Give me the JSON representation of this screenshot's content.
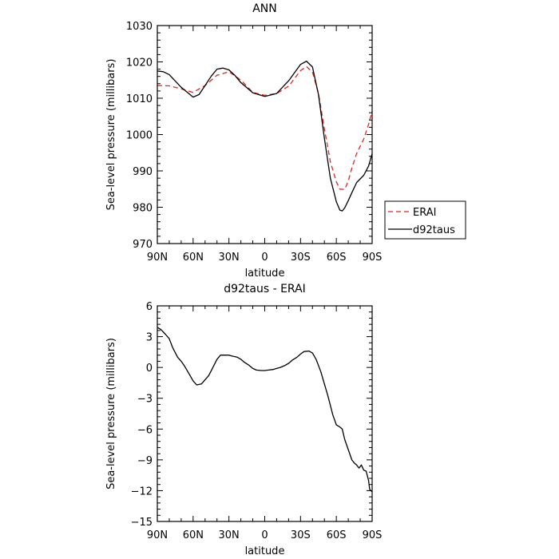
{
  "chart_data": [
    {
      "type": "line",
      "title": "ANN",
      "xlabel": "latitude",
      "ylabel": "Sea-level pressure (millibars)",
      "xlim": [
        90,
        -90
      ],
      "ylim": [
        970,
        1030
      ],
      "yticks": [
        970,
        980,
        990,
        1000,
        1010,
        1020,
        1030
      ],
      "xticks": [
        {
          "v": 90,
          "label": "90N"
        },
        {
          "v": 60,
          "label": "60N"
        },
        {
          "v": 30,
          "label": "30N"
        },
        {
          "v": 0,
          "label": "0"
        },
        {
          "v": -30,
          "label": "30S"
        },
        {
          "v": -60,
          "label": "60S"
        },
        {
          "v": -90,
          "label": "90S"
        }
      ],
      "legend": {
        "placement": "right",
        "entries": [
          {
            "name": "ERAI",
            "color": "#e8231c",
            "style": "dashed"
          },
          {
            "name": "d92taus",
            "color": "#000000",
            "style": "solid"
          }
        ]
      },
      "series": [
        {
          "name": "ERAI",
          "color": "#e8231c",
          "style": "dashed",
          "x": [
            90,
            80,
            70,
            60,
            50,
            40,
            30,
            20,
            10,
            0,
            -10,
            -20,
            -30,
            -35,
            -40,
            -45,
            -50,
            -55,
            -60,
            -63,
            -67,
            -70,
            -73,
            -77,
            -80,
            -83,
            -87,
            -90
          ],
          "y": [
            1013.5,
            1013.4,
            1012.6,
            1011.6,
            1013.5,
            1016.3,
            1017.3,
            1015.0,
            1011.6,
            1010.8,
            1011.3,
            1013.3,
            1017.6,
            1018.7,
            1017.2,
            1011.3,
            1001.6,
            992.5,
            987.0,
            985.0,
            984.9,
            987.2,
            990.8,
            994.8,
            996.8,
            998.8,
            1002.8,
            1006.5
          ]
        },
        {
          "name": "d92taus",
          "color": "#000000",
          "style": "solid",
          "x": [
            90,
            85,
            80,
            70,
            60,
            55,
            50,
            45,
            40,
            35,
            30,
            25,
            20,
            10,
            0,
            -10,
            -20,
            -30,
            -35,
            -40,
            -45,
            -50,
            -55,
            -60,
            -63,
            -65,
            -67,
            -70,
            -73,
            -77,
            -80,
            -83,
            -87,
            -90
          ],
          "y": [
            1017.5,
            1017.3,
            1016.5,
            1013.0,
            1010.3,
            1011.0,
            1013.5,
            1016.0,
            1018.0,
            1018.3,
            1017.8,
            1016.3,
            1014.3,
            1011.5,
            1010.5,
            1011.3,
            1014.8,
            1019.3,
            1020.2,
            1018.6,
            1011.0,
            999.0,
            988.0,
            981.5,
            979.2,
            979.0,
            979.8,
            981.8,
            984.0,
            986.8,
            987.8,
            988.8,
            991.3,
            994.7
          ]
        }
      ]
    },
    {
      "type": "line",
      "title": "d92taus - ERAI",
      "xlabel": "latitude",
      "ylabel": "Sea-level pressure (millibars)",
      "xlim": [
        90,
        -90
      ],
      "ylim": [
        -15,
        6
      ],
      "yticks": [
        -15,
        -12,
        -9,
        -6,
        -3,
        0,
        3,
        6
      ],
      "xticks": [
        {
          "v": 90,
          "label": "90N"
        },
        {
          "v": 60,
          "label": "60N"
        },
        {
          "v": 30,
          "label": "30N"
        },
        {
          "v": 0,
          "label": "0"
        },
        {
          "v": -30,
          "label": "30S"
        },
        {
          "v": -60,
          "label": "60S"
        },
        {
          "v": -90,
          "label": "90S"
        }
      ],
      "series": [
        {
          "color": "#000000",
          "style": "solid",
          "x": [
            90,
            87,
            83,
            80,
            77,
            73,
            70,
            67,
            63,
            60,
            57,
            53,
            50,
            47,
            43,
            40,
            37,
            33,
            30,
            27,
            23,
            20,
            17,
            13,
            10,
            7,
            3,
            0,
            -3,
            -7,
            -10,
            -13,
            -17,
            -20,
            -23,
            -27,
            -30,
            -33,
            -37,
            -40,
            -43,
            -47,
            -50,
            -53,
            -57,
            -60,
            -63,
            -65,
            -67,
            -70,
            -73,
            -75,
            -77,
            -79,
            -81,
            -83,
            -85,
            -87,
            -88,
            -90
          ],
          "y": [
            3.9,
            3.7,
            3.2,
            2.8,
            1.9,
            1.0,
            0.6,
            0.1,
            -0.7,
            -1.3,
            -1.7,
            -1.6,
            -1.2,
            -0.8,
            0.1,
            0.8,
            1.2,
            1.2,
            1.2,
            1.1,
            1.0,
            0.8,
            0.5,
            0.2,
            -0.1,
            -0.25,
            -0.3,
            -0.3,
            -0.25,
            -0.2,
            -0.1,
            0.0,
            0.2,
            0.4,
            0.7,
            1.0,
            1.3,
            1.55,
            1.6,
            1.4,
            0.8,
            -0.4,
            -1.6,
            -2.8,
            -4.6,
            -5.6,
            -5.8,
            -6.0,
            -7.0,
            -8.0,
            -9.0,
            -9.3,
            -9.5,
            -9.8,
            -9.5,
            -10.0,
            -10.1,
            -11.0,
            -11.9,
            -12.1
          ]
        }
      ]
    }
  ]
}
